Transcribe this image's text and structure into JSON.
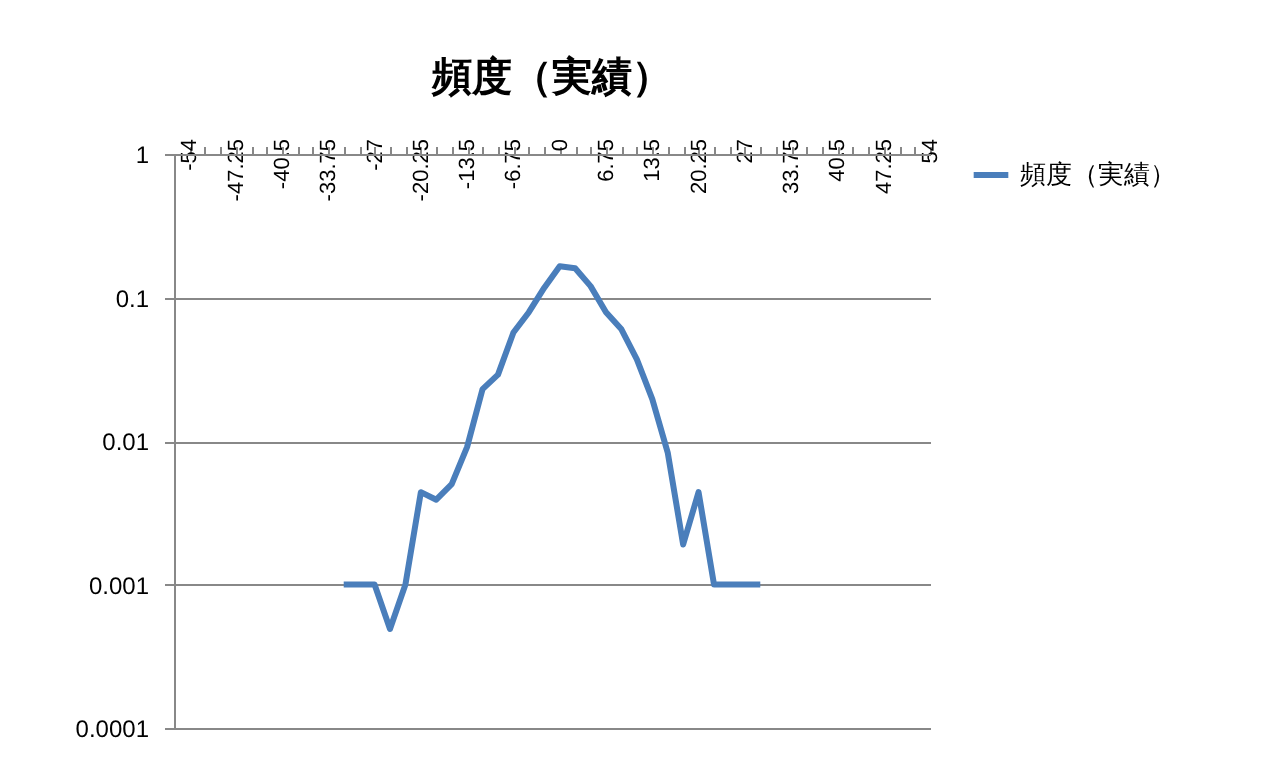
{
  "chart_data": {
    "type": "line",
    "title": "頻度（実績）",
    "x": [
      -31.5,
      -29.25,
      -27,
      -24.75,
      -22.5,
      -20.25,
      -18,
      -15.75,
      -13.5,
      -11.25,
      -9,
      -6.75,
      -4.5,
      -2.25,
      0,
      2.25,
      4.5,
      6.75,
      9,
      11.25,
      13.5,
      15.75,
      18,
      20.25,
      22.5,
      24.75,
      27,
      29.25
    ],
    "series": [
      {
        "name": "頻度（実績）",
        "color": "#4a7ebb",
        "values": [
          0.001,
          0.001,
          0.001,
          0.00049,
          0.001,
          0.0044,
          0.0039,
          0.005,
          0.0091,
          0.023,
          0.029,
          0.057,
          0.079,
          0.117,
          0.165,
          0.16,
          0.12,
          0.079,
          0.06,
          0.037,
          0.0196,
          0.0083,
          0.0019,
          0.0044,
          0.001,
          0.001,
          0.001,
          0.001
        ]
      }
    ],
    "xlim": [
      -56.25,
      54
    ],
    "xticks": [
      -54,
      {
        "value": -51.75,
        "label": null
      },
      {
        "value": -49.5,
        "label": null
      },
      -47.25,
      {
        "value": -45,
        "label": null
      },
      {
        "value": -42.75,
        "label": null
      },
      -40.5,
      {
        "value": -38.25,
        "label": null
      },
      {
        "value": -36,
        "label": null
      },
      -33.75,
      {
        "value": -31.5,
        "label": null
      },
      {
        "value": -29.25,
        "label": null
      },
      -27,
      {
        "value": -24.75,
        "label": null
      },
      {
        "value": -22.5,
        "label": null
      },
      -20.25,
      {
        "value": -18,
        "label": null
      },
      {
        "value": -15.75,
        "label": null
      },
      -13.5,
      {
        "value": -11.25,
        "label": null
      },
      {
        "value": -9,
        "label": null
      },
      -6.75,
      {
        "value": -4.5,
        "label": null
      },
      {
        "value": -2.25,
        "label": null
      },
      0,
      {
        "value": 2.25,
        "label": null
      },
      {
        "value": 4.5,
        "label": null
      },
      6.75,
      {
        "value": 9,
        "label": null
      },
      {
        "value": 11.25,
        "label": null
      },
      13.5,
      {
        "value": 15.75,
        "label": null
      },
      {
        "value": 18,
        "label": null
      },
      20.25,
      {
        "value": 22.5,
        "label": null
      },
      {
        "value": 24.75,
        "label": null
      },
      27,
      {
        "value": 29.25,
        "label": null
      },
      {
        "value": 31.5,
        "label": null
      },
      33.75,
      {
        "value": 36,
        "label": null
      },
      {
        "value": 38.25,
        "label": null
      },
      40.5,
      {
        "value": 42.75,
        "label": null
      },
      {
        "value": 45,
        "label": null
      },
      47.25,
      {
        "value": 49.5,
        "label": null
      },
      {
        "value": 51.75,
        "label": null
      },
      54
    ],
    "ylim": [
      0.0001,
      1
    ],
    "yticks": [
      0.0001,
      0.001,
      0.01,
      0.1,
      1
    ],
    "log": "y",
    "grid": "y",
    "legend": "right",
    "marker": "none",
    "line_style": "solid"
  }
}
